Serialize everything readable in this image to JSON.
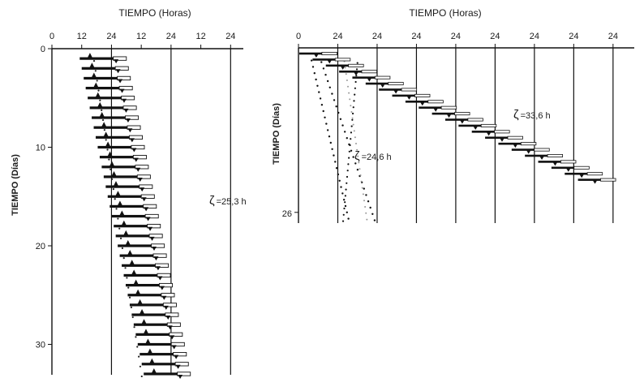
{
  "chart_data": [
    {
      "type": "actogram",
      "panel": "left",
      "title": "TIEMPO (Horas)",
      "xlabel": "TIEMPO (Horas)",
      "ylabel": "TIEMPO (Días)",
      "x_ticks": [
        "0",
        "12",
        "24",
        "12",
        "24",
        "12",
        "24"
      ],
      "y_ticks": [
        "0",
        "10",
        "20",
        "30"
      ],
      "xlim_hours": [
        0,
        72
      ],
      "ylim_days": [
        0,
        33
      ],
      "annotation": {
        "symbol": "ζ",
        "text": "=25,3 h"
      },
      "period_hours": 25.3,
      "rows": 33,
      "first_onset_hour": 11.2,
      "first_offset_hour": 30.0,
      "rows_per_day": 1
    },
    {
      "type": "actogram",
      "panel": "right",
      "title": "TIEMPO (Horas)",
      "xlabel": "TIEMPO (Horas)",
      "ylabel": "TIEMPO (Días)",
      "x_ticks": [
        "0",
        "24",
        "24",
        "24",
        "24",
        "24",
        "24",
        "24",
        "24"
      ],
      "y_ticks": [
        "26"
      ],
      "xlim_hours": [
        0,
        192
      ],
      "ylim_days": [
        0,
        26
      ],
      "series": [
        {
          "label_symbol": "ζ",
          "label_text": "=24,6 h",
          "period_hours": 24.6
        },
        {
          "label_symbol": "ζ",
          "label_text": "=33,6 h",
          "period_hours": 33.6
        }
      ],
      "rows": 26,
      "first_onset_hour": 0.5,
      "first_offset_hour": 22
    }
  ]
}
